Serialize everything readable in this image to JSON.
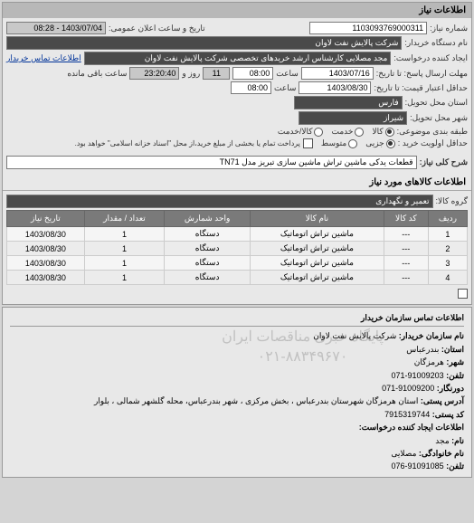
{
  "panel1_title": "اطلاعات نیاز",
  "req_no_lbl": "شماره نیاز:",
  "req_no": "1103093769000311",
  "announce_lbl": "تاریخ و ساعت اعلان عمومی:",
  "announce_val": "1403/07/04 - 08:28",
  "buyer_device_lbl": "نام دستگاه خریدار:",
  "buyer_device": "شرکت پالایش نفت لاوان",
  "creator_lbl": "ایجاد کننده درخواست:",
  "creator": "مجد مصلایی کارشناس ارشد خریدهای تخصصی شرکت پالایش نفت لاوان",
  "contact_link": "اطلاعات تماس خریدار",
  "deadline_send_lbl": "مهلت ارسال پاسخ: تا تاریخ:",
  "deadline_send_date": "1403/07/16",
  "time_lbl": "ساعت",
  "deadline_send_time": "08:00",
  "days_remain": "11",
  "day_lbl": "روز و",
  "time_remain": "23:20:40",
  "remain_lbl": "ساعت باقی مانده",
  "valid_lbl": "حداقل اعتبار قیمت: تا تاریخ:",
  "valid_date": "1403/08/30",
  "valid_time": "08:00",
  "province_lbl": "استان محل تحویل:",
  "province": "فارس",
  "city_lbl": "شهر محل تحویل:",
  "city": "شیراز",
  "pack_lbl": "طبقه بندی موضوعی:",
  "r_goods": "کالا",
  "r_service": "خدمت",
  "r_goods_service": "کالا/خدمت",
  "priority_lbl": "حداقل اولویت خرید :",
  "r_partial": "جزیی",
  "r_medium": "متوسط",
  "priority_note": "پرداخت تمام یا بخشی از مبلغ خرید،از محل \"اسناد خزانه اسلامی\" خواهد بود.",
  "desc_lbl": "شرح کلی نیاز:",
  "desc": "قطعات یدکی ماشین تراش ماشین سازی تبریز مدل TN71",
  "goods_info_title": "اطلاعات کالاهای مورد نیاز",
  "group_lbl": "گروه کالا:",
  "group_val": "تعمیر و نگهداری",
  "th_row": "ردیف",
  "th_code": "کد کالا",
  "th_name": "نام کالا",
  "th_unit": "واحد شمارش",
  "th_qty": "تعداد / مقدار",
  "th_date": "تاریخ نیاز",
  "rows": [
    {
      "n": "1",
      "code": "---",
      "name": "ماشین تراش اتوماتیک",
      "unit": "دستگاه",
      "qty": "1",
      "date": "1403/08/30"
    },
    {
      "n": "2",
      "code": "---",
      "name": "ماشین تراش اتوماتیک",
      "unit": "دستگاه",
      "qty": "1",
      "date": "1403/08/30"
    },
    {
      "n": "3",
      "code": "---",
      "name": "ماشین تراش اتوماتیک",
      "unit": "دستگاه",
      "qty": "1",
      "date": "1403/08/30"
    },
    {
      "n": "4",
      "code": "---",
      "name": "ماشین تراش اتوماتیک",
      "unit": "دستگاه",
      "qty": "1",
      "date": "1403/08/30"
    }
  ],
  "wm1": "پایگاه خبری مناقصات ایران",
  "wm2": "۰۲۱-۸۸۳۴۹۶۷۰",
  "contact_hdr": "اطلاعات تماس سازمان خریدار",
  "org_lbl": "نام سازمان خریدار:",
  "org_val": "شرکت پالایش نفت لاوان",
  "prov2_lbl": "استان:",
  "prov2_val": "بندرعباس",
  "city2_lbl": "شهر:",
  "city2_val": "هرمزگان",
  "tel_lbl": "تلفن:",
  "tel_val": "91009203-071",
  "fax_lbl": "دورنگار:",
  "fax_val": "91009200-071",
  "addr_lbl": "آدرس پستی:",
  "addr_val": "استان هرمزگان شهرستان بندرعباس ، بخش مرکزی ، شهر بندرعباس، محله گلشهر شمالی ، بلوار",
  "post_lbl": "کد پستی:",
  "post_val": "7915319744",
  "req_creator_hdr": "اطلاعات ایجاد کننده درخواست:",
  "name_lbl": "نام:",
  "name_val": "مجد",
  "family_lbl": "نام خانوادگی:",
  "family_val": "مصلایی",
  "tel2_lbl": "تلفن:",
  "tel2_val": "91091085-076"
}
